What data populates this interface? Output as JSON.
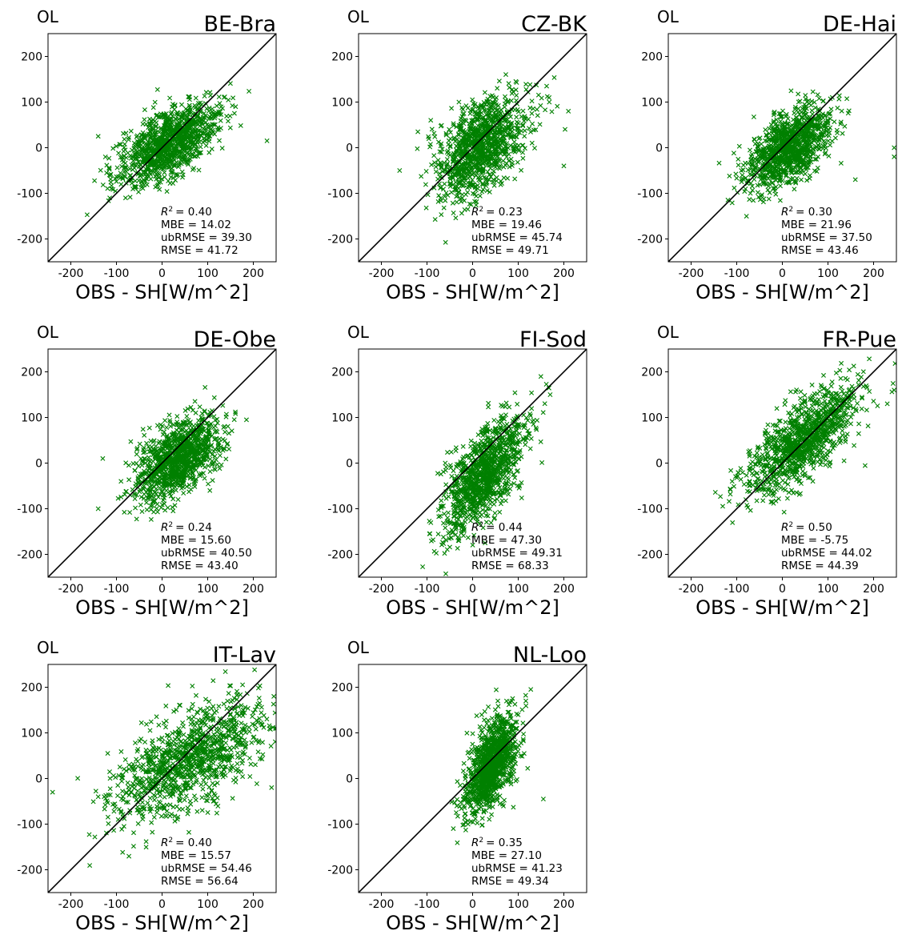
{
  "figure": {
    "panels": [
      {
        "run_label": "OL",
        "site": "BE-Bra",
        "xlabel": "OBS - SH[W/m^2]",
        "stats": {
          "r2": "= 0.40",
          "mbe": "MBE = 14.02",
          "ubrmse": "ubRMSE = 39.30",
          "rmse": "RMSE = 41.72"
        }
      },
      {
        "run_label": "OL",
        "site": "CZ-BK",
        "xlabel": "OBS - SH[W/m^2]",
        "stats": {
          "r2": "= 0.23",
          "mbe": "MBE = 19.46",
          "ubrmse": "ubRMSE = 45.74",
          "rmse": "RMSE = 49.71"
        }
      },
      {
        "run_label": "OL",
        "site": "DE-Hai",
        "xlabel": "OBS - SH[W/m^2]",
        "stats": {
          "r2": "= 0.30",
          "mbe": "MBE = 21.96",
          "ubrmse": "ubRMSE = 37.50",
          "rmse": "RMSE = 43.46"
        }
      },
      {
        "run_label": "OL",
        "site": "DE-Obe",
        "xlabel": "OBS - SH[W/m^2]",
        "stats": {
          "r2": "= 0.24",
          "mbe": "MBE = 15.60",
          "ubrmse": "ubRMSE = 40.50",
          "rmse": "RMSE = 43.40"
        }
      },
      {
        "run_label": "OL",
        "site": "FI-Sod",
        "xlabel": "OBS - SH[W/m^2]",
        "stats": {
          "r2": "= 0.44",
          "mbe": "MBE = 47.30",
          "ubrmse": "ubRMSE = 49.31",
          "rmse": "RMSE = 68.33"
        }
      },
      {
        "run_label": "OL",
        "site": "FR-Pue",
        "xlabel": "OBS - SH[W/m^2]",
        "stats": {
          "r2": "= 0.50",
          "mbe": "MBE = -5.75",
          "ubrmse": "ubRMSE = 44.02",
          "rmse": "RMSE = 44.39"
        }
      },
      {
        "run_label": "OL",
        "site": "IT-Lav",
        "xlabel": "OBS - SH[W/m^2]",
        "stats": {
          "r2": "= 0.40",
          "mbe": "MBE = 15.57",
          "ubrmse": "ubRMSE = 54.46",
          "rmse": "RMSE = 56.64"
        }
      },
      {
        "run_label": "OL",
        "site": "NL-Loo",
        "xlabel": "OBS - SH[W/m^2]",
        "stats": {
          "r2": "= 0.35",
          "mbe": "MBE = 27.10",
          "ubrmse": "ubRMSE = 41.23",
          "rmse": "RMSE = 49.34"
        }
      }
    ]
  },
  "chart_data": [
    {
      "type": "scatter",
      "title": "BE-Bra",
      "xlabel": "OBS - SH[W/m^2]",
      "ylabel": "",
      "xlim": [
        -250,
        250
      ],
      "ylim": [
        -250,
        250
      ],
      "xticks": [
        "-200",
        "-100",
        "0",
        "100",
        "200"
      ],
      "yticks": [
        "-200",
        "-100",
        "0",
        "100",
        "200"
      ],
      "reference_line": "1:1",
      "marker": "x",
      "color": "#008000",
      "grid": false,
      "cloud": {
        "center": [
          15,
          10
        ],
        "spread": [
          55,
          45
        ],
        "correlation": 0.63
      },
      "outliers": [
        [
          230,
          15
        ],
        [
          -140,
          25
        ],
        [
          -80,
          -110
        ]
      ],
      "stats": {
        "R2": 0.4,
        "MBE": 14.02,
        "ubRMSE": 39.3,
        "RMSE": 41.72
      }
    },
    {
      "type": "scatter",
      "title": "CZ-BK",
      "xlabel": "OBS - SH[W/m^2]",
      "ylabel": "",
      "xlim": [
        -250,
        250
      ],
      "ylim": [
        -250,
        250
      ],
      "xticks": [
        "-200",
        "-100",
        "0",
        "100",
        "200"
      ],
      "yticks": [
        "-200",
        "-100",
        "0",
        "100",
        "200"
      ],
      "reference_line": "1:1",
      "marker": "x",
      "color": "#008000",
      "grid": false,
      "cloud": {
        "center": [
          20,
          5
        ],
        "spread": [
          50,
          55
        ],
        "correlation": 0.48
      },
      "outliers": [
        [
          -160,
          -50
        ],
        [
          -120,
          35
        ],
        [
          -30,
          100
        ],
        [
          210,
          80
        ],
        [
          200,
          -40
        ]
      ],
      "stats": {
        "R2": 0.23,
        "MBE": 19.46,
        "ubRMSE": 45.74,
        "RMSE": 49.71
      }
    },
    {
      "type": "scatter",
      "title": "DE-Hai",
      "xlabel": "OBS - SH[W/m^2]",
      "ylabel": "",
      "xlim": [
        -250,
        250
      ],
      "ylim": [
        -250,
        250
      ],
      "xticks": [
        "-200",
        "-100",
        "0",
        "100",
        "200"
      ],
      "yticks": [
        "-200",
        "-100",
        "0",
        "100",
        "200"
      ],
      "reference_line": "1:1",
      "marker": "x",
      "color": "#008000",
      "grid": false,
      "cloud": {
        "center": [
          15,
          0
        ],
        "spread": [
          45,
          45
        ],
        "correlation": 0.55
      },
      "outliers": [
        [
          -90,
          -50
        ],
        [
          245,
          -20
        ],
        [
          245,
          0
        ],
        [
          160,
          -70
        ],
        [
          -70,
          -100
        ]
      ],
      "stats": {
        "R2": 0.3,
        "MBE": 21.96,
        "ubRMSE": 37.5,
        "RMSE": 43.46
      }
    },
    {
      "type": "scatter",
      "title": "DE-Obe",
      "xlabel": "OBS - SH[W/m^2]",
      "ylabel": "",
      "xlim": [
        -250,
        250
      ],
      "ylim": [
        -250,
        250
      ],
      "xticks": [
        "-200",
        "-100",
        "0",
        "100",
        "200"
      ],
      "yticks": [
        "-200",
        "-100",
        "0",
        "100",
        "200"
      ],
      "reference_line": "1:1",
      "marker": "x",
      "color": "#008000",
      "grid": false,
      "cloud": {
        "center": [
          35,
          10
        ],
        "spread": [
          45,
          45
        ],
        "correlation": 0.49
      },
      "outliers": [
        [
          -140,
          -100
        ],
        [
          -130,
          10
        ],
        [
          185,
          95
        ],
        [
          -90,
          -40
        ]
      ],
      "stats": {
        "R2": 0.24,
        "MBE": 15.6,
        "ubRMSE": 40.5,
        "RMSE": 43.4
      }
    },
    {
      "type": "scatter",
      "title": "FI-Sod",
      "xlabel": "OBS - SH[W/m^2]",
      "ylabel": "",
      "xlim": [
        -250,
        250
      ],
      "ylim": [
        -250,
        250
      ],
      "xticks": [
        "-200",
        "-100",
        "0",
        "100",
        "200"
      ],
      "yticks": [
        "-200",
        "-100",
        "0",
        "100",
        "200"
      ],
      "reference_line": "1:1",
      "marker": "x",
      "color": "#008000",
      "grid": false,
      "cloud": {
        "center": [
          25,
          -25
        ],
        "spread": [
          45,
          65
        ],
        "correlation": 0.66
      },
      "outliers": [
        [
          -30,
          -170
        ],
        [
          -35,
          -120
        ],
        [
          170,
          150
        ],
        [
          -60,
          0
        ]
      ],
      "stats": {
        "R2": 0.44,
        "MBE": 47.3,
        "ubRMSE": 49.31,
        "RMSE": 68.33
      }
    },
    {
      "type": "scatter",
      "title": "FR-Pue",
      "xlabel": "OBS - SH[W/m^2]",
      "ylabel": "",
      "xlim": [
        -250,
        250
      ],
      "ylim": [
        -250,
        250
      ],
      "xticks": [
        "-200",
        "-100",
        "0",
        "100",
        "200"
      ],
      "yticks": [
        "-200",
        "-100",
        "0",
        "100",
        "200"
      ],
      "reference_line": "1:1",
      "marker": "x",
      "color": "#008000",
      "grid": false,
      "cloud": {
        "center": [
          45,
          50
        ],
        "spread": [
          60,
          60
        ],
        "correlation": 0.71
      },
      "outliers": [
        [
          245,
          160
        ],
        [
          230,
          130
        ],
        [
          -110,
          -40
        ],
        [
          -80,
          -80
        ]
      ],
      "stats": {
        "R2": 0.5,
        "MBE": -5.75,
        "ubRMSE": 44.02,
        "RMSE": 44.39
      }
    },
    {
      "type": "scatter",
      "title": "IT-Lav",
      "xlabel": "OBS - SH[W/m^2]",
      "ylabel": "",
      "xlim": [
        -250,
        250
      ],
      "ylim": [
        -250,
        250
      ],
      "xticks": [
        "-200",
        "-100",
        "0",
        "100",
        "200"
      ],
      "yticks": [
        "-200",
        "-100",
        "0",
        "100",
        "200"
      ],
      "reference_line": "1:1",
      "marker": "x",
      "color": "#008000",
      "grid": false,
      "cloud": {
        "center": [
          60,
          40
        ],
        "spread": [
          85,
          65
        ],
        "correlation": 0.63
      },
      "outliers": [
        [
          -240,
          -30
        ],
        [
          245,
          180
        ],
        [
          240,
          -20
        ],
        [
          -140,
          -40
        ]
      ],
      "stats": {
        "R2": 0.4,
        "MBE": 15.57,
        "ubRMSE": 54.46,
        "RMSE": 56.64
      }
    },
    {
      "type": "scatter",
      "title": "NL-Loo",
      "xlabel": "OBS - SH[W/m^2]",
      "ylabel": "",
      "xlim": [
        -250,
        250
      ],
      "ylim": [
        -250,
        250
      ],
      "xticks": [
        "-200",
        "-100",
        "0",
        "100",
        "200"
      ],
      "yticks": [
        "-200",
        "-100",
        "0",
        "100",
        "200"
      ],
      "reference_line": "1:1",
      "marker": "x",
      "color": "#008000",
      "grid": false,
      "cloud": {
        "center": [
          40,
          30
        ],
        "spread": [
          28,
          55
        ],
        "correlation": 0.59
      },
      "outliers": [
        [
          155,
          -45
        ],
        [
          -10,
          -100
        ]
      ],
      "stats": {
        "R2": 0.35,
        "MBE": 27.1,
        "ubRMSE": 41.23,
        "RMSE": 49.34
      }
    }
  ]
}
